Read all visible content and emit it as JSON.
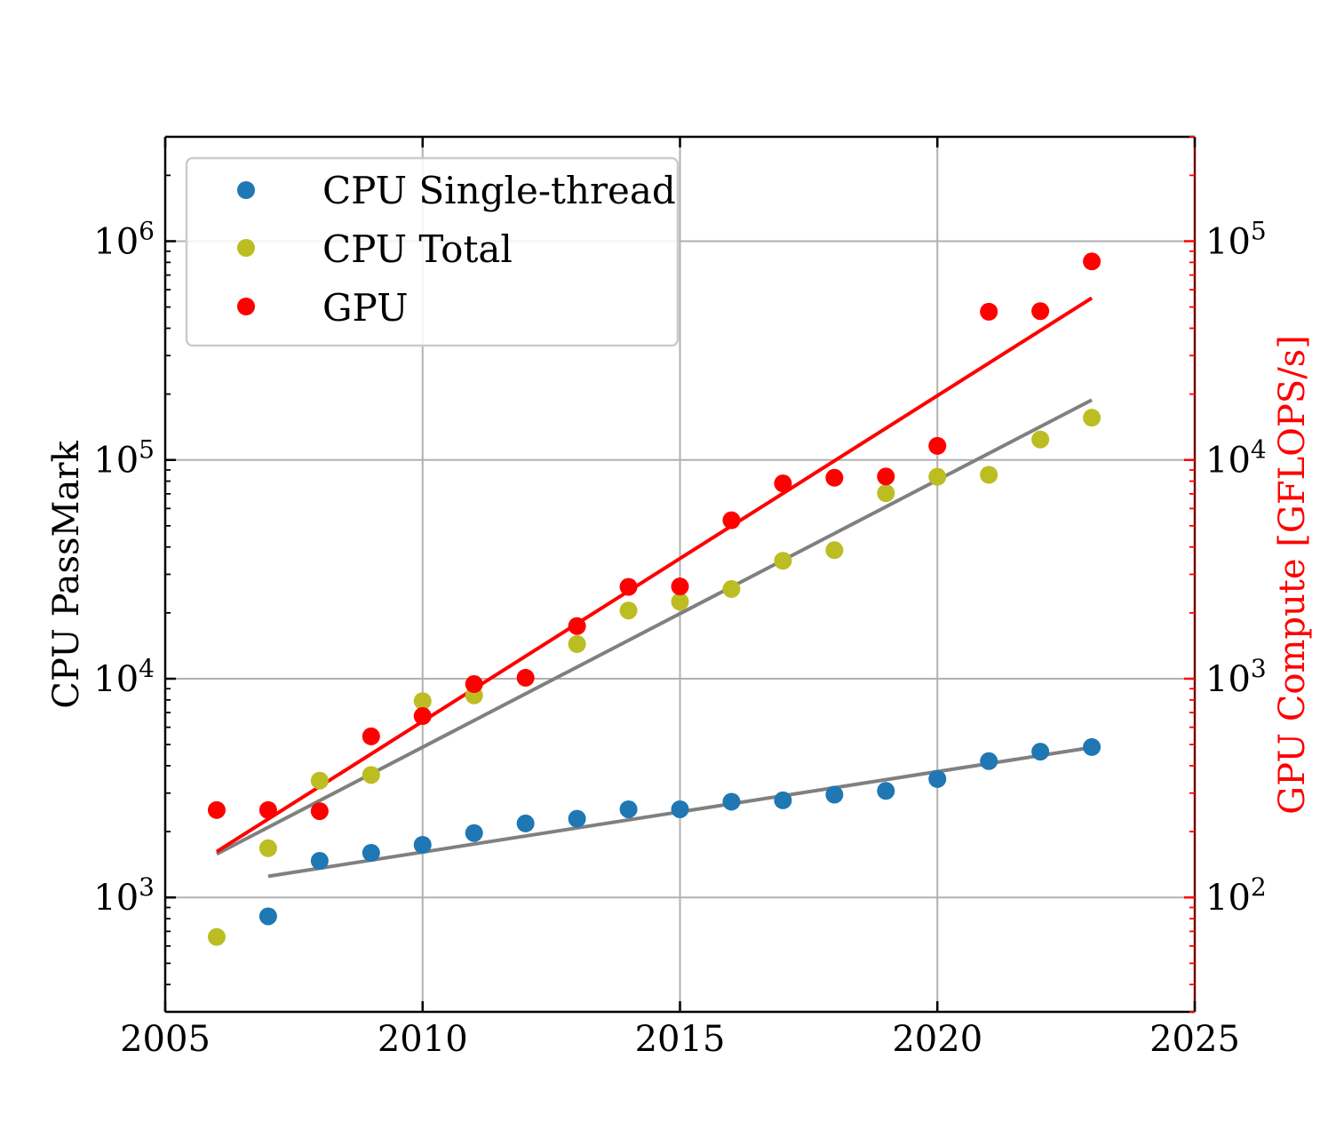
{
  "chart_data": {
    "type": "scatter",
    "title": "",
    "xlabel": "",
    "ylabel": "CPU PassMark",
    "ylabel_right": "GPU Compute [GFLOPS/s]",
    "xlim": [
      2005,
      2025
    ],
    "ylim": [
      300,
      3000000
    ],
    "ylim_right": [
      30,
      300000
    ],
    "yscale": "log",
    "yscale_right": "log",
    "grid": true,
    "legend_position": "upper-left",
    "x_ticks": [
      "2005",
      "2010",
      "2015",
      "2020",
      "2025"
    ],
    "y_ticks": [
      {
        "base": "10",
        "exp": "3"
      },
      {
        "base": "10",
        "exp": "4"
      },
      {
        "base": "10",
        "exp": "5"
      },
      {
        "base": "10",
        "exp": "6"
      }
    ],
    "y_ticks_right": [
      {
        "base": "10",
        "exp": "2"
      },
      {
        "base": "10",
        "exp": "3"
      },
      {
        "base": "10",
        "exp": "4"
      },
      {
        "base": "10",
        "exp": "5"
      }
    ],
    "series": [
      {
        "name": "CPU Single-thread",
        "axis": "left",
        "color": "#1f77b4",
        "x": [
          2007,
          2008,
          2009,
          2010,
          2011,
          2012,
          2013,
          2014,
          2015,
          2016,
          2017,
          2018,
          2019,
          2020,
          2021,
          2022,
          2023
        ],
        "y": [
          820,
          1470,
          1600,
          1740,
          1970,
          2180,
          2290,
          2530,
          2530,
          2740,
          2780,
          2950,
          3070,
          3480,
          4200,
          4640,
          4870
        ]
      },
      {
        "name": "CPU Total",
        "axis": "left",
        "color": "#bcbd22",
        "x": [
          2006,
          2007,
          2008,
          2009,
          2010,
          2011,
          2013,
          2014,
          2015,
          2016,
          2017,
          2018,
          2019,
          2020,
          2021,
          2022,
          2023
        ],
        "y": [
          660,
          1680,
          3420,
          3630,
          7900,
          8390,
          14400,
          20500,
          22500,
          25700,
          34600,
          38700,
          70500,
          83800,
          85500,
          124000,
          156000
        ]
      },
      {
        "name": "GPU",
        "axis": "right",
        "color": "#ff0000",
        "x": [
          2006,
          2007,
          2008,
          2009,
          2010,
          2011,
          2012,
          2013,
          2014,
          2015,
          2016,
          2017,
          2018,
          2019,
          2020,
          2021,
          2022,
          2023
        ],
        "y": [
          251,
          251,
          248,
          545,
          675,
          945,
          1010,
          1740,
          2630,
          2640,
          5300,
          7810,
          8290,
          8400,
          11600,
          47600,
          47900,
          80800
        ]
      }
    ],
    "fit_lines": [
      {
        "axis": "left",
        "color": "#808080",
        "x": [
          2007,
          2023
        ],
        "y": [
          1250,
          4850
        ]
      },
      {
        "axis": "left",
        "color": "#808080",
        "x": [
          2006,
          2023
        ],
        "y": [
          1580,
          188000
        ]
      },
      {
        "axis": "right",
        "color": "#ff0000",
        "x": [
          2006,
          2023
        ],
        "y": [
          162,
          55000
        ]
      }
    ]
  }
}
